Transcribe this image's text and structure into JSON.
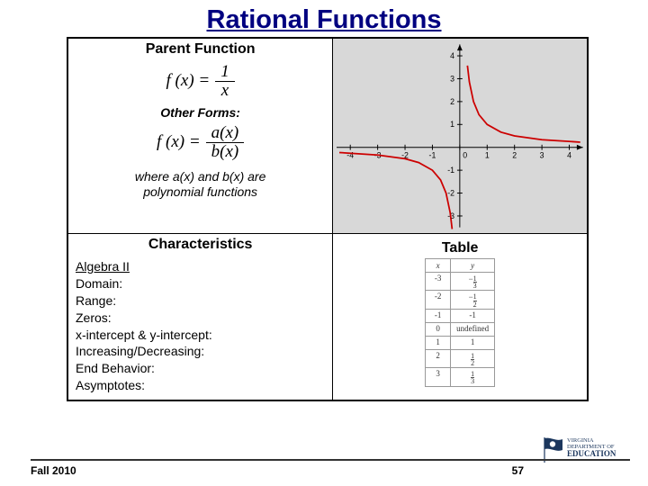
{
  "title": "Rational Functions",
  "sections": {
    "parent": "Parent Function",
    "otherForms": "Other Forms:",
    "characteristics": "Characteristics",
    "tableHeading": "Table"
  },
  "formula1": {
    "lhs": "f (x) =",
    "num": "1",
    "den": "x"
  },
  "formula2": {
    "lhs": "f (x) =",
    "num": "a(x)",
    "den": "b(x)"
  },
  "whereLines": [
    "where a(x) and b(x) are",
    "polynomial functions"
  ],
  "characteristics": {
    "head": "Algebra II",
    "items": [
      "Domain:",
      "Range:",
      "Zeros:",
      "x-intercept & y-intercept:",
      "Increasing/Decreasing:",
      "End Behavior:",
      "Asymptotes:"
    ]
  },
  "graph": {
    "type": "line",
    "background": "#d8d8d8",
    "axis_color": "#000000",
    "series_color": "#cc0000",
    "xlim": [
      -4.5,
      4.5
    ],
    "ylim": [
      -3.5,
      4.5
    ],
    "xticks": [
      -4,
      -3,
      -2,
      -1,
      0,
      1,
      2,
      3,
      4
    ],
    "yticks": [
      -3,
      -2,
      -1,
      1,
      2,
      3,
      4
    ],
    "branch1_x": [
      -4.4,
      -3,
      -2,
      -1.5,
      -1,
      -0.7,
      -0.5,
      -0.35,
      -0.28
    ],
    "branch2_x": [
      0.28,
      0.35,
      0.5,
      0.7,
      1,
      1.5,
      2,
      3,
      4.4
    ]
  },
  "valueTable": {
    "headers": [
      "x",
      "y"
    ],
    "rows": [
      {
        "x": "-3",
        "y": {
          "num": "1",
          "den": "3",
          "neg": true
        }
      },
      {
        "x": "-2",
        "y": {
          "num": "1",
          "den": "2",
          "neg": true
        }
      },
      {
        "x": "-1",
        "y": "-1"
      },
      {
        "x": "0",
        "y": "undefined"
      },
      {
        "x": "1",
        "y": "1"
      },
      {
        "x": "2",
        "y": {
          "num": "1",
          "den": "2",
          "neg": false
        }
      },
      {
        "x": "3",
        "y": {
          "num": "1",
          "den": "3",
          "neg": false
        }
      }
    ]
  },
  "footer": {
    "left": "Fall 2010",
    "page": "57"
  },
  "logo": {
    "l1": "VIRGINIA DEPARTMENT OF",
    "l2": "EDUCATION"
  }
}
